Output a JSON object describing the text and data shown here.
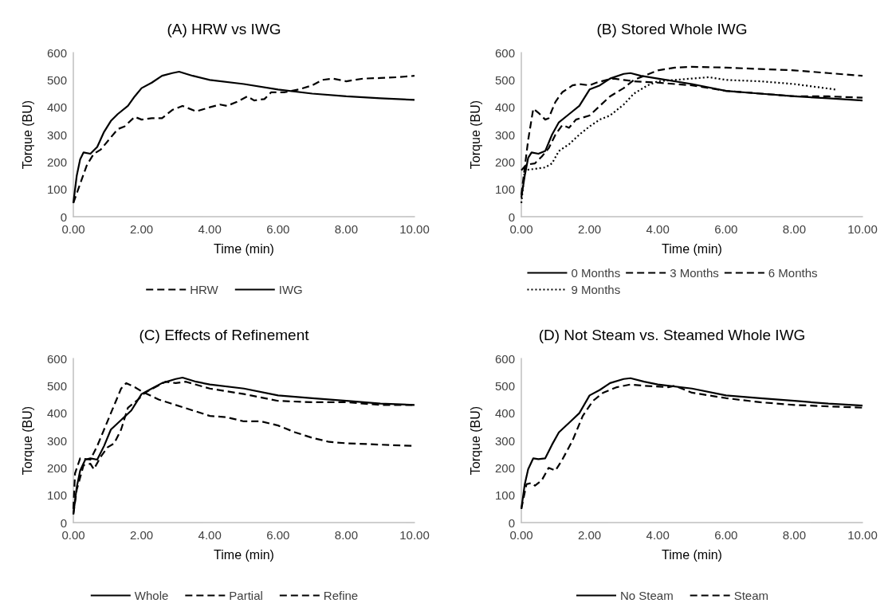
{
  "chart_data": [
    {
      "type": "line",
      "title": "(A) HRW vs IWG",
      "xlabel": "Time (min)",
      "ylabel": "Torque (BU)",
      "xlim": [
        0,
        10
      ],
      "ylim": [
        0,
        600
      ],
      "xticks": [
        {
          "value": 0,
          "label": "0.00"
        },
        {
          "value": 2,
          "label": "2.00"
        },
        {
          "value": 4,
          "label": "4.00"
        },
        {
          "value": 6,
          "label": "6.00"
        },
        {
          "value": 8,
          "label": "8.00"
        },
        {
          "value": 10,
          "label": "10.00"
        }
      ],
      "yticks": [
        0,
        100,
        200,
        300,
        400,
        500,
        600
      ],
      "grid": false,
      "legend": "bottom",
      "marker": "none",
      "series": [
        {
          "name": "HRW",
          "color": "#000000",
          "line_style": "dashed",
          "x": [
            0,
            0.2,
            0.4,
            0.6,
            0.8,
            1.1,
            1.3,
            1.5,
            1.8,
            2.0,
            2.3,
            2.6,
            2.9,
            3.2,
            3.6,
            4.0,
            4.3,
            4.5,
            4.8,
            5.1,
            5.3,
            5.6,
            5.8,
            6.2,
            6.6,
            7.0,
            7.3,
            7.6,
            8.0,
            8.5,
            9.0,
            9.5,
            10
          ],
          "values": [
            50,
            120,
            190,
            230,
            245,
            290,
            320,
            330,
            365,
            355,
            360,
            360,
            390,
            405,
            385,
            400,
            410,
            405,
            420,
            440,
            425,
            430,
            455,
            455,
            465,
            480,
            500,
            505,
            495,
            505,
            507,
            510,
            515
          ]
        },
        {
          "name": "IWG",
          "color": "#000000",
          "line_style": "solid",
          "x": [
            0,
            0.1,
            0.2,
            0.3,
            0.5,
            0.7,
            0.9,
            1.1,
            1.3,
            1.6,
            1.8,
            2.0,
            2.3,
            2.6,
            2.9,
            3.1,
            3.5,
            4,
            5,
            6,
            7,
            8,
            9,
            10
          ],
          "values": [
            50,
            150,
            210,
            235,
            230,
            255,
            310,
            350,
            375,
            405,
            440,
            470,
            490,
            515,
            525,
            530,
            515,
            500,
            485,
            465,
            450,
            440,
            433,
            427
          ]
        }
      ]
    },
    {
      "type": "line",
      "title": "(B) Stored Whole IWG",
      "xlabel": "Time (min)",
      "ylabel": "Torque (BU)",
      "xlim": [
        0,
        10
      ],
      "ylim": [
        0,
        600
      ],
      "xticks": [
        {
          "value": 0,
          "label": "0.00"
        },
        {
          "value": 2,
          "label": "2.00"
        },
        {
          "value": 4,
          "label": "4.00"
        },
        {
          "value": 6,
          "label": "6.00"
        },
        {
          "value": 8,
          "label": "8.00"
        },
        {
          "value": 10,
          "label": "10.00"
        }
      ],
      "yticks": [
        0,
        100,
        200,
        300,
        400,
        500,
        600
      ],
      "grid": false,
      "legend": "bottom",
      "marker": "none",
      "series": [
        {
          "name": "0 Months",
          "color": "#000000",
          "line_style": "solid",
          "x": [
            0,
            0.1,
            0.2,
            0.3,
            0.5,
            0.7,
            0.9,
            1.1,
            1.4,
            1.7,
            2.0,
            2.3,
            2.6,
            3.0,
            3.2,
            3.5,
            4,
            5,
            6,
            7,
            8,
            9,
            10
          ],
          "values": [
            70,
            150,
            215,
            235,
            230,
            240,
            300,
            345,
            375,
            405,
            465,
            480,
            505,
            522,
            525,
            515,
            505,
            485,
            460,
            450,
            440,
            433,
            425
          ]
        },
        {
          "name": "3 Months",
          "color": "#000000",
          "line_style": "dashed",
          "x": [
            0,
            0.1,
            0.2,
            0.35,
            0.5,
            0.7,
            0.8,
            1.0,
            1.2,
            1.5,
            1.7,
            2.0,
            2.2,
            2.5,
            2.7,
            3.0,
            3.3,
            4,
            5,
            6,
            7,
            8,
            9,
            10
          ],
          "values": [
            80,
            180,
            280,
            395,
            380,
            355,
            360,
            420,
            455,
            480,
            485,
            480,
            490,
            500,
            505,
            500,
            495,
            490,
            480,
            460,
            450,
            440,
            440,
            435
          ]
        },
        {
          "name": "6 Months",
          "color": "#000000",
          "line_style": "dashed",
          "x": [
            0,
            0.15,
            0.4,
            0.6,
            0.8,
            1.0,
            1.2,
            1.4,
            1.6,
            2.0,
            2.3,
            2.6,
            3.0,
            3.3,
            3.7,
            4.0,
            4.5,
            5,
            6,
            7,
            8,
            9,
            10
          ],
          "values": [
            170,
            190,
            195,
            220,
            250,
            300,
            335,
            325,
            355,
            370,
            405,
            440,
            470,
            500,
            520,
            535,
            545,
            548,
            545,
            540,
            535,
            525,
            515
          ]
        },
        {
          "name": "9 Months",
          "color": "#000000",
          "line_style": "dotted",
          "x": [
            0,
            0.1,
            0.4,
            0.7,
            0.9,
            1.1,
            1.4,
            1.7,
            2.0,
            2.3,
            2.6,
            3.0,
            3.3,
            3.7,
            4.0,
            4.5,
            5,
            5.5,
            6,
            7,
            8,
            9.2
          ],
          "values": [
            50,
            170,
            175,
            180,
            195,
            240,
            265,
            300,
            330,
            355,
            370,
            410,
            450,
            480,
            495,
            500,
            505,
            510,
            500,
            495,
            485,
            465
          ]
        }
      ]
    },
    {
      "type": "line",
      "title": "(C) Effects of Refinement",
      "xlabel": "Time (min)",
      "ylabel": "Torque (BU)",
      "xlim": [
        0,
        10
      ],
      "ylim": [
        0,
        600
      ],
      "xticks": [
        {
          "value": 0,
          "label": "0.00"
        },
        {
          "value": 2,
          "label": "2.00"
        },
        {
          "value": 4,
          "label": "4.00"
        },
        {
          "value": 6,
          "label": "6.00"
        },
        {
          "value": 8,
          "label": "8.00"
        },
        {
          "value": 10,
          "label": "10.00"
        }
      ],
      "yticks": [
        0,
        100,
        200,
        300,
        400,
        500,
        600
      ],
      "grid": false,
      "legend": "bottom",
      "marker": "none",
      "series": [
        {
          "name": "Whole",
          "color": "#000000",
          "line_style": "solid",
          "x": [
            0,
            0.1,
            0.2,
            0.35,
            0.5,
            0.7,
            0.9,
            1.1,
            1.4,
            1.7,
            2.0,
            2.3,
            2.6,
            3.0,
            3.2,
            3.6,
            4,
            5,
            6,
            7,
            8,
            9,
            10
          ],
          "values": [
            30,
            130,
            190,
            230,
            235,
            230,
            280,
            340,
            375,
            410,
            470,
            490,
            510,
            525,
            530,
            515,
            505,
            490,
            465,
            455,
            445,
            435,
            430
          ]
        },
        {
          "name": "Partial",
          "color": "#000000",
          "line_style": "dashed",
          "x": [
            0,
            0.1,
            0.3,
            0.5,
            0.6,
            0.8,
            1.0,
            1.2,
            1.4,
            1.6,
            1.9,
            2.1,
            2.4,
            2.7,
            3.0,
            3.3,
            4,
            5,
            6,
            7,
            8,
            9,
            10
          ],
          "values": [
            30,
            120,
            210,
            215,
            195,
            240,
            275,
            290,
            340,
            420,
            450,
            475,
            495,
            515,
            510,
            515,
            490,
            470,
            445,
            440,
            440,
            430,
            430
          ]
        },
        {
          "name": "Refine",
          "color": "#000000",
          "line_style": "dashed",
          "x": [
            0,
            0.05,
            0.2,
            0.5,
            0.7,
            0.9,
            1.2,
            1.4,
            1.55,
            1.8,
            2.0,
            2.5,
            3.0,
            3.5,
            4.0,
            4.5,
            5.0,
            5.5,
            6.0,
            6.5,
            7.0,
            7.5,
            8,
            9,
            10
          ],
          "values": [
            50,
            180,
            235,
            230,
            280,
            340,
            430,
            490,
            510,
            495,
            480,
            450,
            430,
            410,
            390,
            385,
            370,
            370,
            355,
            330,
            310,
            295,
            290,
            285,
            280
          ]
        }
      ]
    },
    {
      "type": "line",
      "title": "(D) Not Steam vs. Steamed Whole IWG",
      "xlabel": "Time (min)",
      "ylabel": "Torque (BU)",
      "xlim": [
        0,
        10
      ],
      "ylim": [
        0,
        600
      ],
      "xticks": [
        {
          "value": 0,
          "label": "0.00"
        },
        {
          "value": 2,
          "label": "2.00"
        },
        {
          "value": 4,
          "label": "4.00"
        },
        {
          "value": 6,
          "label": "6.00"
        },
        {
          "value": 8,
          "label": "8.00"
        },
        {
          "value": 10,
          "label": "10.00"
        }
      ],
      "yticks": [
        0,
        100,
        200,
        300,
        400,
        500,
        600
      ],
      "grid": false,
      "legend": "bottom",
      "marker": "none",
      "series": [
        {
          "name": "No Steam",
          "color": "#000000",
          "line_style": "solid",
          "x": [
            0,
            0.1,
            0.2,
            0.35,
            0.5,
            0.7,
            0.9,
            1.1,
            1.4,
            1.7,
            2.0,
            2.3,
            2.6,
            3.0,
            3.2,
            3.6,
            4,
            5,
            6,
            7,
            8,
            9,
            10
          ],
          "values": [
            50,
            140,
            195,
            235,
            232,
            235,
            285,
            330,
            365,
            400,
            465,
            485,
            510,
            525,
            528,
            515,
            505,
            490,
            465,
            455,
            445,
            435,
            428
          ]
        },
        {
          "name": "Steam",
          "color": "#000000",
          "line_style": "dashed",
          "x": [
            0,
            0.15,
            0.3,
            0.4,
            0.6,
            0.8,
            1.0,
            1.2,
            1.5,
            1.8,
            2.1,
            2.4,
            2.8,
            3.2,
            3.6,
            4.3,
            4.5,
            5,
            6,
            7,
            8,
            9,
            10
          ],
          "values": [
            50,
            140,
            145,
            135,
            155,
            200,
            190,
            230,
            300,
            390,
            445,
            475,
            495,
            505,
            500,
            495,
            500,
            475,
            455,
            440,
            430,
            425,
            420
          ]
        }
      ]
    }
  ]
}
